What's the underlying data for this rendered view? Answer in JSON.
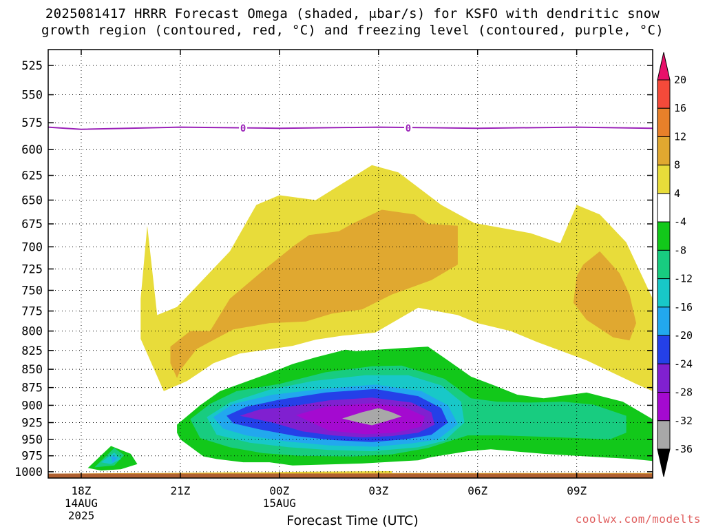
{
  "title": {
    "line1": "2025081417 HRRR Forecast Omega (shaded, μbar/s) for KSFO with dendritic snow",
    "line2": "growth region (contoured, red, °C) and freezing level (contoured, purple, °C)"
  },
  "x_axis_title": "Forecast Time (UTC)",
  "credit": "coolwx.com/modelts",
  "chart_data": {
    "type": "heatmap",
    "y_axis": {
      "label": "",
      "ticks": [
        525,
        550,
        575,
        600,
        625,
        650,
        675,
        700,
        725,
        750,
        775,
        800,
        825,
        850,
        875,
        900,
        925,
        950,
        975,
        1000
      ],
      "range": [
        512,
        1010
      ],
      "scale": "log",
      "inverted": true
    },
    "x_axis": {
      "ticks": [
        {
          "label": "18Z",
          "sub1": "14AUG",
          "sub2": "2025",
          "hour": 0
        },
        {
          "label": "21Z",
          "sub1": "",
          "sub2": "",
          "hour": 3
        },
        {
          "label": "00Z",
          "sub1": "15AUG",
          "sub2": "",
          "hour": 6
        },
        {
          "label": "03Z",
          "sub1": "",
          "sub2": "",
          "hour": 9
        },
        {
          "label": "06Z",
          "sub1": "",
          "sub2": "",
          "hour": 12
        },
        {
          "label": "09Z",
          "sub1": "",
          "sub2": "",
          "hour": 15
        }
      ],
      "range": [
        -1,
        17.3
      ]
    },
    "grid": true,
    "colorbar": {
      "labels": [
        "20",
        "16",
        "12",
        "8",
        "4",
        "-4",
        "-8",
        "-12",
        "-16",
        "-20",
        "-24",
        "-28",
        "-32",
        "-36"
      ],
      "bins": [
        {
          "value": 22,
          "color": "#e8106a"
        },
        {
          "value": 18,
          "color": "#f44a3a"
        },
        {
          "value": 14,
          "color": "#e8802a"
        },
        {
          "value": 10,
          "color": "#e0a830"
        },
        {
          "value": 6,
          "color": "#e8dc3a"
        },
        {
          "value": 0,
          "color": "#ffffff"
        },
        {
          "value": -6,
          "color": "#12c81a"
        },
        {
          "value": -10,
          "color": "#18cc80"
        },
        {
          "value": -14,
          "color": "#18c8c8"
        },
        {
          "value": -18,
          "color": "#22a8ee"
        },
        {
          "value": -22,
          "color": "#2440e8"
        },
        {
          "value": -26,
          "color": "#8020d0"
        },
        {
          "value": -30,
          "color": "#a40ad0"
        },
        {
          "value": -34,
          "color": "#a8a8a8"
        },
        {
          "value": -38,
          "color": "#000000"
        }
      ]
    },
    "freezing_level": {
      "color": "#9a20b8",
      "label": "0",
      "points": [
        [
          -1,
          579
        ],
        [
          0,
          581
        ],
        [
          3,
          579
        ],
        [
          6,
          580
        ],
        [
          9,
          579
        ],
        [
          12,
          580
        ],
        [
          15,
          579
        ],
        [
          17.3,
          580
        ]
      ],
      "label_hours": [
        4.9,
        9.9
      ]
    },
    "omega_regions": [
      {
        "level": "4",
        "color": "#e8dc3a",
        "points": [
          [
            1.9,
            1003
          ],
          [
            2.7,
            1002
          ],
          [
            4.5,
            1001
          ],
          [
            5.4,
            1001
          ],
          [
            6.6,
            1000
          ],
          [
            9.4,
            999
          ],
          [
            9.4,
            1002
          ],
          [
            3.6,
            1003
          ]
        ]
      },
      {
        "level": "4",
        "color": "#e8dc3a",
        "points": [
          [
            1.8,
            760
          ],
          [
            2.0,
            677
          ],
          [
            2.3,
            780
          ],
          [
            2.9,
            770
          ],
          [
            4.5,
            705
          ],
          [
            5.3,
            655
          ],
          [
            6.0,
            645
          ],
          [
            7.1,
            650
          ],
          [
            8.8,
            615
          ],
          [
            9.6,
            622
          ],
          [
            10.9,
            655
          ],
          [
            11.9,
            674
          ],
          [
            13.6,
            685
          ],
          [
            14.5,
            696
          ],
          [
            15.0,
            655
          ],
          [
            15.7,
            665
          ],
          [
            16.5,
            695
          ],
          [
            17.3,
            760
          ],
          [
            17.3,
            880
          ],
          [
            16.8,
            870
          ],
          [
            15.3,
            838
          ],
          [
            14.3,
            822
          ],
          [
            13.8,
            814
          ],
          [
            13.0,
            800
          ],
          [
            12.0,
            790
          ],
          [
            11.4,
            780
          ],
          [
            10.2,
            771
          ],
          [
            8.9,
            802
          ],
          [
            7.9,
            806
          ],
          [
            7.1,
            811
          ],
          [
            6.4,
            819
          ],
          [
            4.8,
            829
          ],
          [
            4.0,
            842
          ],
          [
            3.7,
            851
          ],
          [
            3.2,
            866
          ],
          [
            2.5,
            880
          ],
          [
            1.8,
            810
          ]
        ]
      },
      {
        "level": "8",
        "color": "#e0a830",
        "points": [
          [
            2.7,
            820
          ],
          [
            3.3,
            800
          ],
          [
            3.9,
            800
          ],
          [
            4.5,
            760
          ],
          [
            5.5,
            727
          ],
          [
            6.4,
            700
          ],
          [
            6.9,
            687
          ],
          [
            7.8,
            683
          ],
          [
            8.2,
            675
          ],
          [
            9.1,
            660
          ],
          [
            10.1,
            665
          ],
          [
            10.5,
            675
          ],
          [
            11.4,
            677
          ],
          [
            11.4,
            720
          ],
          [
            10.6,
            738
          ],
          [
            9.4,
            755
          ],
          [
            8.5,
            773
          ],
          [
            7.6,
            778
          ],
          [
            6.8,
            788
          ],
          [
            5.7,
            790
          ],
          [
            4.6,
            798
          ],
          [
            3.5,
            823
          ],
          [
            3.0,
            851
          ],
          [
            2.9,
            862
          ],
          [
            2.7,
            842
          ]
        ]
      },
      {
        "level": "8",
        "color": "#e0a830",
        "points": [
          [
            15.2,
            720
          ],
          [
            15.7,
            705
          ],
          [
            16.3,
            730
          ],
          [
            16.6,
            755
          ],
          [
            16.8,
            790
          ],
          [
            16.6,
            812
          ],
          [
            16.1,
            808
          ],
          [
            15.3,
            786
          ],
          [
            14.9,
            765
          ],
          [
            15.0,
            733
          ]
        ]
      },
      {
        "level": "8",
        "color": "#e0a830",
        "points": [
          [
            1.8,
            1002
          ],
          [
            9.4,
            1002
          ],
          [
            17.3,
            1002
          ],
          [
            17.3,
            1005
          ],
          [
            -1,
            1005
          ],
          [
            -1,
            1003
          ]
        ]
      },
      {
        "level": "-4",
        "color": "#12c81a",
        "points": [
          [
            0.2,
            994
          ],
          [
            0.9,
            960
          ],
          [
            1.5,
            972
          ],
          [
            1.7,
            988
          ],
          [
            1.2,
            996
          ],
          [
            0.6,
            998
          ]
        ]
      },
      {
        "level": "-4",
        "color": "#12c81a",
        "points": [
          [
            2.9,
            928
          ],
          [
            3.6,
            900
          ],
          [
            4.2,
            880
          ],
          [
            5.6,
            857
          ],
          [
            6.4,
            843
          ],
          [
            7.1,
            834
          ],
          [
            8.0,
            824
          ],
          [
            8.3,
            826
          ],
          [
            9.7,
            822
          ],
          [
            10.5,
            820
          ],
          [
            11.1,
            838
          ],
          [
            11.8,
            860
          ],
          [
            12.5,
            872
          ],
          [
            13.2,
            885
          ],
          [
            14.0,
            890
          ],
          [
            15.3,
            882
          ],
          [
            16.4,
            895
          ],
          [
            17.3,
            920
          ],
          [
            17.3,
            983
          ],
          [
            16.7,
            980
          ],
          [
            15.0,
            975
          ],
          [
            14.0,
            972
          ],
          [
            12.4,
            965
          ],
          [
            11.7,
            968
          ],
          [
            10.6,
            977
          ],
          [
            10.2,
            982
          ],
          [
            8.5,
            987
          ],
          [
            6.4,
            990
          ],
          [
            5.7,
            985
          ],
          [
            4.9,
            985
          ],
          [
            4.1,
            980
          ],
          [
            3.7,
            976
          ],
          [
            3.0,
            950
          ],
          [
            2.9,
            940
          ]
        ]
      },
      {
        "level": "-8",
        "color": "#18cc80",
        "points": [
          [
            0.4,
            993
          ],
          [
            1.0,
            963
          ],
          [
            1.3,
            974
          ],
          [
            1.0,
            990
          ]
        ]
      },
      {
        "level": "-8",
        "color": "#18cc80",
        "points": [
          [
            3.3,
            920
          ],
          [
            3.9,
            898
          ],
          [
            4.7,
            880
          ],
          [
            6.0,
            870
          ],
          [
            7.4,
            854
          ],
          [
            8.8,
            846
          ],
          [
            9.7,
            845
          ],
          [
            11.0,
            863
          ],
          [
            11.8,
            890
          ],
          [
            12.6,
            895
          ],
          [
            13.6,
            896
          ],
          [
            14.6,
            895
          ],
          [
            15.5,
            899
          ],
          [
            16.0,
            907
          ],
          [
            16.5,
            915
          ],
          [
            16.5,
            940
          ],
          [
            16.0,
            950
          ],
          [
            15.0,
            948
          ],
          [
            14.0,
            946
          ],
          [
            12.7,
            944
          ],
          [
            11.7,
            944
          ],
          [
            10.5,
            963
          ],
          [
            9.4,
            973
          ],
          [
            8.2,
            976
          ],
          [
            6.6,
            975
          ],
          [
            5.5,
            971
          ],
          [
            4.5,
            962
          ],
          [
            3.6,
            948
          ]
        ]
      },
      {
        "level": "-12",
        "color": "#18c8c8",
        "points": [
          [
            0.6,
            985
          ],
          [
            1.0,
            970
          ],
          [
            1.2,
            980
          ],
          [
            0.9,
            988
          ]
        ]
      },
      {
        "level": "-12",
        "color": "#18c8c8",
        "points": [
          [
            3.8,
            917
          ],
          [
            4.5,
            896
          ],
          [
            5.7,
            878
          ],
          [
            7.0,
            866
          ],
          [
            8.6,
            858
          ],
          [
            9.9,
            858
          ],
          [
            10.9,
            872
          ],
          [
            11.5,
            895
          ],
          [
            11.6,
            925
          ],
          [
            11.0,
            952
          ],
          [
            10.2,
            962
          ],
          [
            8.8,
            968
          ],
          [
            7.5,
            966
          ],
          [
            6.3,
            962
          ],
          [
            5.1,
            955
          ],
          [
            4.1,
            943
          ]
        ]
      },
      {
        "level": "-16",
        "color": "#22a8ee",
        "points": [
          [
            0.9,
            975
          ],
          [
            1.1,
            978
          ],
          [
            0.95,
            986
          ]
        ]
      },
      {
        "level": "-16",
        "color": "#22a8ee",
        "points": [
          [
            4.0,
            917
          ],
          [
            4.6,
            898
          ],
          [
            5.8,
            885
          ],
          [
            7.3,
            877
          ],
          [
            8.9,
            871
          ],
          [
            10.3,
            880
          ],
          [
            11.1,
            900
          ],
          [
            11.4,
            927
          ],
          [
            10.8,
            950
          ],
          [
            10.0,
            956
          ],
          [
            8.9,
            961
          ],
          [
            7.5,
            959
          ],
          [
            6.2,
            953
          ],
          [
            5.0,
            944
          ],
          [
            4.3,
            934
          ]
        ]
      },
      {
        "level": "-20",
        "color": "#2440e8",
        "points": [
          [
            4.4,
            915
          ],
          [
            5.0,
            902
          ],
          [
            6.0,
            892
          ],
          [
            7.4,
            882
          ],
          [
            8.9,
            877
          ],
          [
            10.2,
            887
          ],
          [
            10.9,
            904
          ],
          [
            11.1,
            925
          ],
          [
            10.6,
            943
          ],
          [
            9.8,
            950
          ],
          [
            8.8,
            954
          ],
          [
            7.6,
            951
          ],
          [
            6.5,
            945
          ],
          [
            5.4,
            935
          ],
          [
            4.6,
            926
          ]
        ]
      },
      {
        "level": "-24",
        "color": "#8020d0",
        "points": [
          [
            4.8,
            915
          ],
          [
            5.4,
            906
          ],
          [
            6.3,
            902
          ],
          [
            7.5,
            893
          ],
          [
            8.8,
            889
          ],
          [
            10.0,
            896
          ],
          [
            10.6,
            910
          ],
          [
            10.7,
            928
          ],
          [
            10.2,
            940
          ],
          [
            9.4,
            945
          ],
          [
            8.5,
            947
          ],
          [
            7.6,
            944
          ],
          [
            6.7,
            938
          ],
          [
            5.8,
            925
          ]
        ]
      },
      {
        "level": "-28",
        "color": "#a40ad0",
        "points": [
          [
            6.5,
            914
          ],
          [
            7.4,
            902
          ],
          [
            8.8,
            897
          ],
          [
            9.8,
            903
          ],
          [
            10.4,
            916
          ],
          [
            10.3,
            931
          ],
          [
            9.5,
            940
          ],
          [
            8.6,
            942
          ],
          [
            7.5,
            937
          ]
        ]
      },
      {
        "level": "-32",
        "color": "#a8a8a8",
        "points": [
          [
            7.9,
            919
          ],
          [
            8.5,
            910
          ],
          [
            9.0,
            904
          ],
          [
            9.4,
            910
          ],
          [
            9.7,
            916
          ],
          [
            9.3,
            922
          ],
          [
            8.8,
            929
          ],
          [
            8.4,
            925
          ]
        ]
      }
    ],
    "ground": {
      "color": "#b06030",
      "from": 1003
    }
  }
}
